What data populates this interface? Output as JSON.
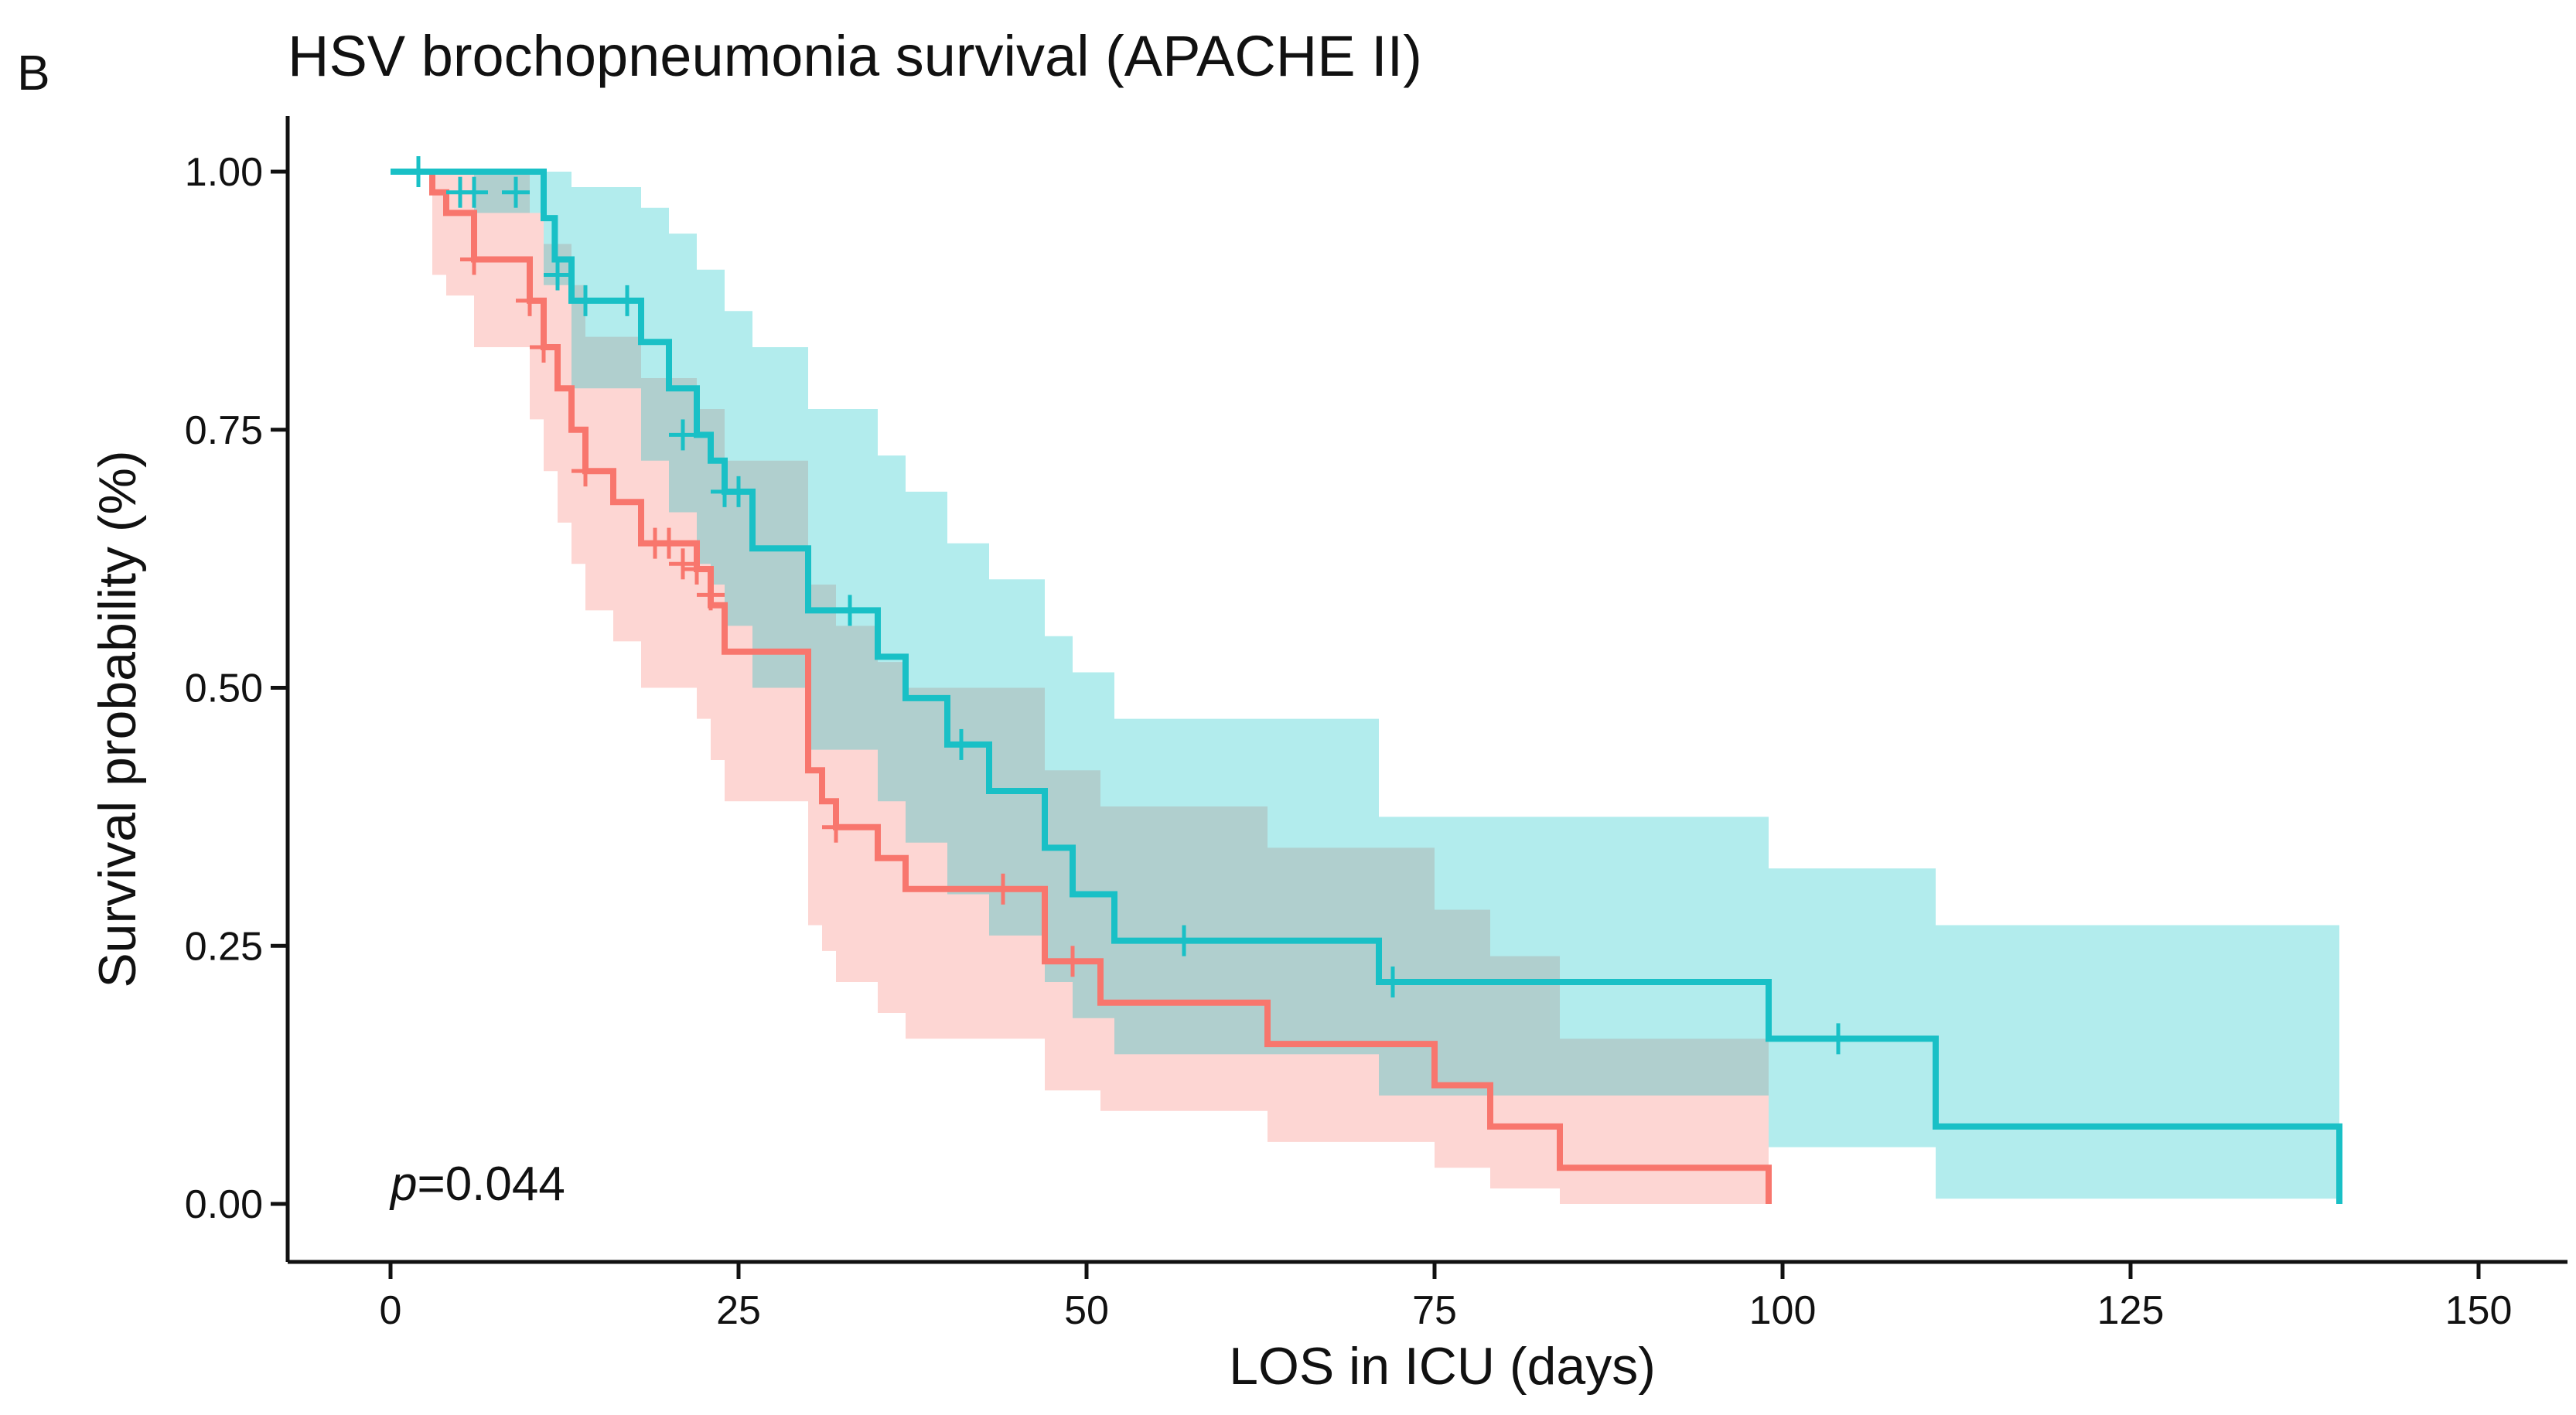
{
  "panel_letter": "B",
  "chart_data": {
    "type": "line",
    "subtype": "kaplan-meier",
    "title": "HSV brochopneumonia survival (APACHE II)",
    "xlabel": "LOS in ICU (days)",
    "ylabel": "Survival probability (%)",
    "xlim": [
      0,
      150
    ],
    "ylim": [
      0,
      1
    ],
    "xticks": [
      0,
      25,
      50,
      75,
      100,
      125,
      150
    ],
    "xtick_labels": [
      "0",
      "25",
      "50",
      "75",
      "100",
      "125",
      "150"
    ],
    "yticks": [
      0,
      0.25,
      0.5,
      0.75,
      1.0
    ],
    "ytick_labels": [
      "0.00",
      "0.25",
      "0.50",
      "0.75",
      "1.00"
    ],
    "grid": false,
    "legend": "none",
    "annotation": {
      "prefix": "p",
      "text": "=0.044"
    },
    "series": [
      {
        "color": "#F8766D",
        "band_color": "#F8766D",
        "steps": [
          [
            0,
            1.0
          ],
          [
            3,
            0.98
          ],
          [
            4,
            0.96
          ],
          [
            6,
            0.915
          ],
          [
            10,
            0.875
          ],
          [
            11,
            0.83
          ],
          [
            12,
            0.79
          ],
          [
            13,
            0.75
          ],
          [
            14,
            0.71
          ],
          [
            16,
            0.68
          ],
          [
            18,
            0.64
          ],
          [
            22,
            0.615
          ],
          [
            23,
            0.58
          ],
          [
            24,
            0.535
          ],
          [
            30,
            0.42
          ],
          [
            31,
            0.39
          ],
          [
            32,
            0.365
          ],
          [
            35,
            0.335
          ],
          [
            37,
            0.305
          ],
          [
            47,
            0.235
          ],
          [
            51,
            0.195
          ],
          [
            63,
            0.155
          ],
          [
            75,
            0.115
          ],
          [
            79,
            0.075
          ],
          [
            84,
            0.035
          ],
          [
            99,
            0.0
          ]
        ],
        "end": 99,
        "upper": [
          [
            0,
            1.0
          ],
          [
            3,
            1.0
          ],
          [
            6,
            1.0
          ],
          [
            10,
            0.96
          ],
          [
            11,
            0.93
          ],
          [
            13,
            0.89
          ],
          [
            14,
            0.84
          ],
          [
            18,
            0.8
          ],
          [
            22,
            0.77
          ],
          [
            24,
            0.72
          ],
          [
            30,
            0.6
          ],
          [
            32,
            0.56
          ],
          [
            35,
            0.525
          ],
          [
            37,
            0.5
          ],
          [
            47,
            0.42
          ],
          [
            51,
            0.385
          ],
          [
            63,
            0.345
          ],
          [
            75,
            0.285
          ],
          [
            79,
            0.24
          ],
          [
            84,
            0.16
          ],
          [
            99,
            0.09
          ]
        ],
        "lower": [
          [
            0,
            1.0
          ],
          [
            3,
            0.9
          ],
          [
            4,
            0.88
          ],
          [
            6,
            0.83
          ],
          [
            10,
            0.76
          ],
          [
            11,
            0.71
          ],
          [
            12,
            0.66
          ],
          [
            13,
            0.62
          ],
          [
            14,
            0.575
          ],
          [
            16,
            0.545
          ],
          [
            18,
            0.5
          ],
          [
            22,
            0.47
          ],
          [
            23,
            0.43
          ],
          [
            24,
            0.39
          ],
          [
            30,
            0.27
          ],
          [
            31,
            0.245
          ],
          [
            32,
            0.215
          ],
          [
            35,
            0.185
          ],
          [
            37,
            0.16
          ],
          [
            47,
            0.11
          ],
          [
            51,
            0.09
          ],
          [
            63,
            0.06
          ],
          [
            75,
            0.035
          ],
          [
            79,
            0.015
          ],
          [
            84,
            0.0
          ],
          [
            99,
            0.0
          ]
        ],
        "censors": [
          [
            6,
            0.915
          ],
          [
            10,
            0.875
          ],
          [
            11,
            0.83
          ],
          [
            14,
            0.71
          ],
          [
            19,
            0.64
          ],
          [
            20,
            0.64
          ],
          [
            21,
            0.62
          ],
          [
            22,
            0.615
          ],
          [
            23,
            0.59
          ],
          [
            32,
            0.365
          ],
          [
            44,
            0.305
          ],
          [
            49,
            0.235
          ]
        ]
      },
      {
        "color": "#19C0C6",
        "band_color": "#00BFC4",
        "steps": [
          [
            0,
            1.0
          ],
          [
            11,
            0.955
          ],
          [
            11.8,
            0.915
          ],
          [
            13,
            0.875
          ],
          [
            18,
            0.835
          ],
          [
            20,
            0.79
          ],
          [
            22,
            0.745
          ],
          [
            23,
            0.72
          ],
          [
            24,
            0.69
          ],
          [
            26,
            0.635
          ],
          [
            30,
            0.575
          ],
          [
            35,
            0.53
          ],
          [
            37,
            0.49
          ],
          [
            40,
            0.445
          ],
          [
            43,
            0.4
          ],
          [
            47,
            0.345
          ],
          [
            49,
            0.3
          ],
          [
            52,
            0.255
          ],
          [
            71,
            0.215
          ],
          [
            99,
            0.16
          ],
          [
            111,
            0.075
          ],
          [
            140,
            0.0
          ]
        ],
        "end": 140,
        "upper": [
          [
            0,
            1.0
          ],
          [
            11,
            1.0
          ],
          [
            13,
            0.985
          ],
          [
            18,
            0.965
          ],
          [
            20,
            0.94
          ],
          [
            22,
            0.905
          ],
          [
            24,
            0.865
          ],
          [
            26,
            0.83
          ],
          [
            30,
            0.77
          ],
          [
            35,
            0.725
          ],
          [
            37,
            0.69
          ],
          [
            40,
            0.64
          ],
          [
            43,
            0.605
          ],
          [
            47,
            0.55
          ],
          [
            49,
            0.515
          ],
          [
            52,
            0.47
          ],
          [
            71,
            0.375
          ],
          [
            99,
            0.325
          ],
          [
            111,
            0.27
          ],
          [
            140,
            0.27
          ]
        ],
        "lower": [
          [
            0,
            1.0
          ],
          [
            6,
            0.96
          ],
          [
            11,
            0.89
          ],
          [
            13,
            0.79
          ],
          [
            18,
            0.72
          ],
          [
            20,
            0.67
          ],
          [
            22,
            0.62
          ],
          [
            23,
            0.6
          ],
          [
            24,
            0.56
          ],
          [
            26,
            0.5
          ],
          [
            30,
            0.44
          ],
          [
            35,
            0.39
          ],
          [
            37,
            0.35
          ],
          [
            40,
            0.3
          ],
          [
            43,
            0.26
          ],
          [
            47,
            0.215
          ],
          [
            49,
            0.18
          ],
          [
            52,
            0.145
          ],
          [
            71,
            0.105
          ],
          [
            99,
            0.055
          ],
          [
            111,
            0.005
          ],
          [
            140,
            0.005
          ]
        ],
        "censors": [
          [
            2,
            1.0
          ],
          [
            5,
            0.98
          ],
          [
            6,
            0.98
          ],
          [
            9,
            0.98
          ],
          [
            12,
            0.9
          ],
          [
            14,
            0.875
          ],
          [
            17,
            0.875
          ],
          [
            21,
            0.745
          ],
          [
            24,
            0.69
          ],
          [
            25,
            0.69
          ],
          [
            33,
            0.575
          ],
          [
            41,
            0.445
          ],
          [
            57,
            0.255
          ],
          [
            72,
            0.215
          ],
          [
            104,
            0.16
          ]
        ]
      }
    ]
  }
}
